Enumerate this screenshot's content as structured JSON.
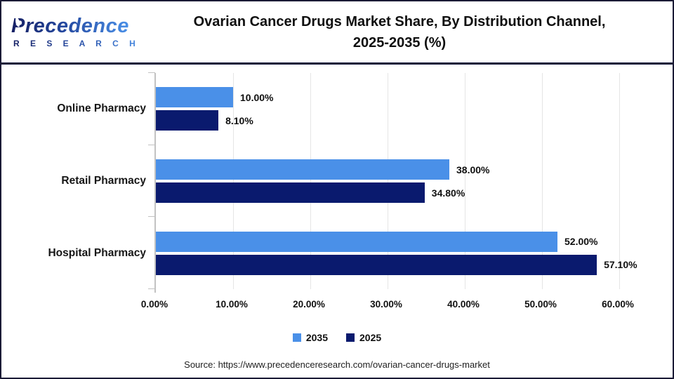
{
  "header": {
    "logo": {
      "name": "Precedence",
      "subname": "R E S E A R C H",
      "leaf_icon": "leaf-icon"
    },
    "title_line1": "Ovarian Cancer Drugs Market Share, By Distribution Channel,",
    "title_line2": "2025-2035 (%)"
  },
  "chart_data": {
    "type": "bar",
    "orientation": "horizontal",
    "title": "Ovarian Cancer Drugs Market Share, By Distribution Channel, 2025-2035 (%)",
    "categories": [
      "Online Pharmacy",
      "Retail Pharmacy",
      "Hospital Pharmacy"
    ],
    "series": [
      {
        "name": "2035",
        "color": "#4a90e8",
        "values": [
          10.0,
          38.0,
          52.0
        ],
        "value_labels": [
          "10.00%",
          "38.00%",
          "52.00%"
        ]
      },
      {
        "name": "2025",
        "color": "#0a1a6e",
        "values": [
          8.1,
          34.8,
          57.1
        ],
        "value_labels": [
          "8.10%",
          "34.80%",
          "57.10%"
        ]
      }
    ],
    "xlim": [
      0,
      60
    ],
    "x_tick_labels": [
      "0.00%",
      "10.00%",
      "20.00%",
      "30.00%",
      "40.00%",
      "50.00%",
      "60.00%"
    ],
    "grid": true,
    "legend_position": "bottom"
  },
  "source": "Source: https://www.precedenceresearch.com/ovarian-cancer-drugs-market",
  "colors": {
    "series_2035": "#4a90e8",
    "series_2025": "#0a1a6e",
    "frame_border": "#1b1b35",
    "header_rule": "#0e1238",
    "axis_line": "#c2c2c2",
    "gridline": "#e5e5e5"
  }
}
